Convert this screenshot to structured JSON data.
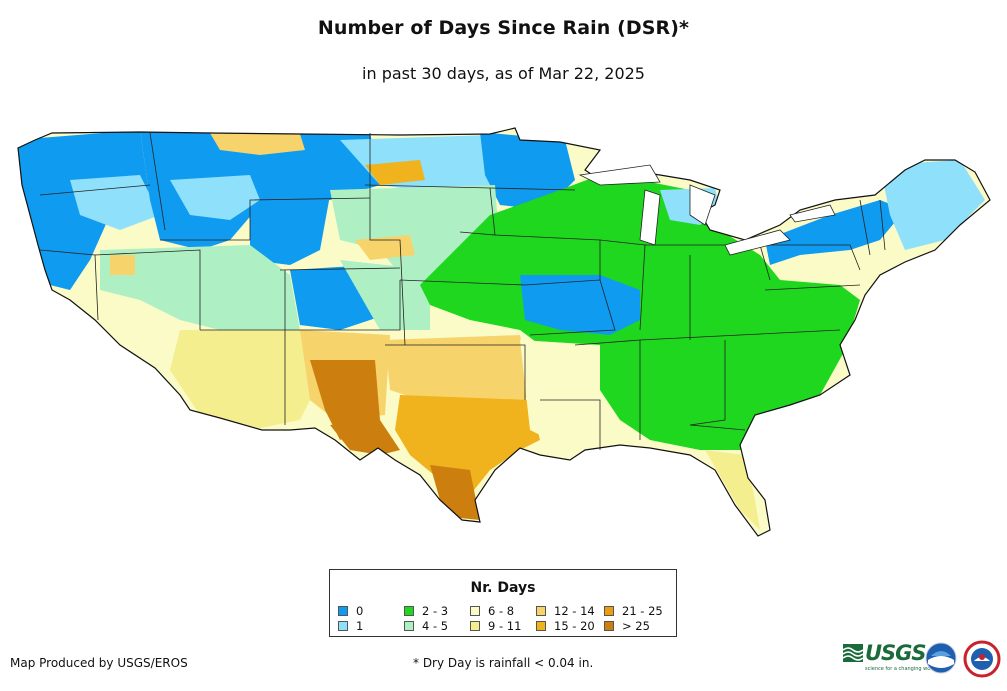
{
  "title": "Number of Days Since Rain (DSR)*",
  "subtitle": "in past 30 days, as of Mar 22, 2025",
  "legend": {
    "title": "Nr. Days",
    "items": [
      {
        "label": "0",
        "color": "#0f9bf0"
      },
      {
        "label": "1",
        "color": "#8ee0fb"
      },
      {
        "label": "2 - 3",
        "color": "#1ed71e"
      },
      {
        "label": "4 - 5",
        "color": "#aef0c4"
      },
      {
        "label": "6 - 8",
        "color": "#fbfbc8"
      },
      {
        "label": "9 - 11",
        "color": "#f4ee8f"
      },
      {
        "label": "12 - 14",
        "color": "#f7d36b"
      },
      {
        "label": "15 - 20",
        "color": "#f0b21d"
      },
      {
        "label": "21 - 25",
        "color": "#eb9c13"
      },
      {
        "label": "> 25",
        "color": "#cc7f0f"
      }
    ]
  },
  "footer": {
    "credit": "Map Produced by USGS/EROS",
    "note": "* Dry Day is rainfall < 0.04 in."
  },
  "logos": {
    "usgs_text": "USGS",
    "usgs_tagline": "science for a changing world",
    "noaa_text": "NOAA"
  }
}
